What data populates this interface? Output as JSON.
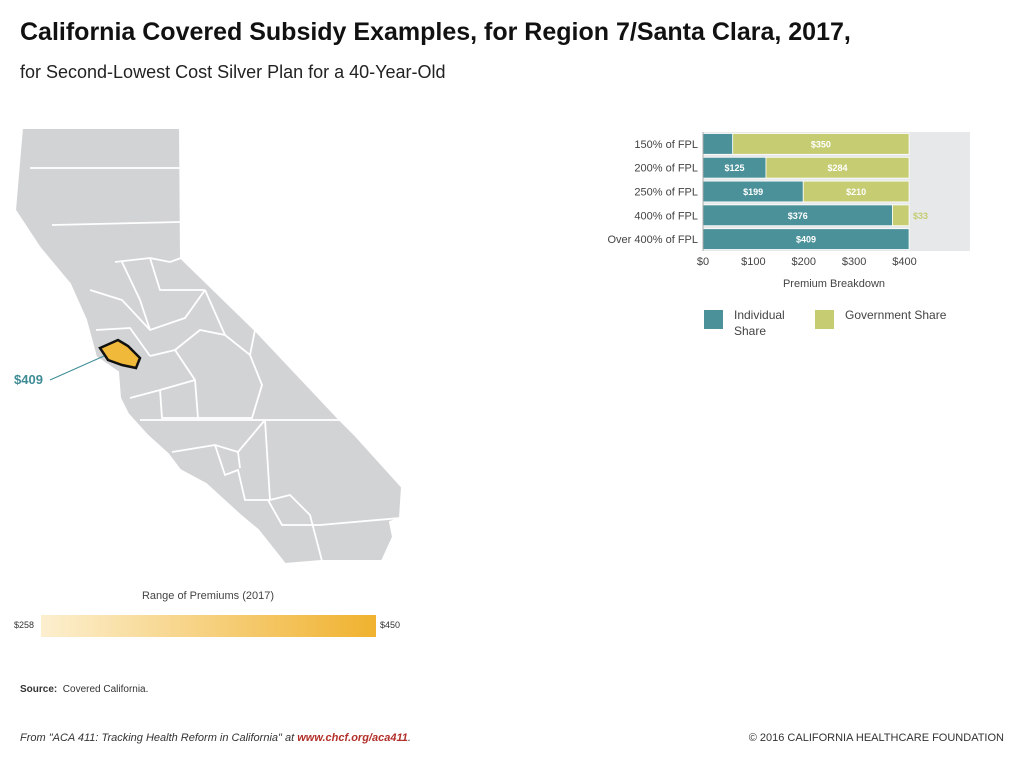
{
  "header": {
    "title": "California Covered Subsidy Examples, for Region 7/Santa Clara, 2017,",
    "subtitle": "for Second-Lowest Cost Silver Plan for a 40-Year-Old"
  },
  "map": {
    "highlight_label": "$409",
    "highlight_color": "#f1b93a",
    "land_color": "#d2d3d5",
    "callout_color": "#3f8c96"
  },
  "range": {
    "title": "Range of Premiums (2017)",
    "min_label": "$258",
    "max_label": "$450",
    "min_color": "#fcefcf",
    "max_color": "#f0b22f"
  },
  "chart_data": {
    "type": "bar",
    "orientation": "horizontal",
    "stacked": true,
    "categories": [
      "150% of FPL",
      "200% of FPL",
      "250% of FPL",
      "400% of FPL",
      "Over 400% of FPL"
    ],
    "series": [
      {
        "name": "Individual Share",
        "color": "#4b9199",
        "values": [
          59,
          125,
          199,
          376,
          409
        ],
        "labels": [
          "$59",
          "$125",
          "$199",
          "$376",
          "$409"
        ]
      },
      {
        "name": "Government Share",
        "color": "#c5cc72",
        "values": [
          350,
          284,
          210,
          33,
          0
        ],
        "labels": [
          "$350",
          "$284",
          "$210",
          "$33",
          ""
        ]
      }
    ],
    "xlabel": "Premium Breakdown",
    "xticks": [
      "$0",
      "$100",
      "$200",
      "$300",
      "$400"
    ],
    "xlim": [
      0,
      530
    ],
    "legend_position": "bottom",
    "grid": false
  },
  "source": {
    "label": "Source:",
    "text": "Covered California."
  },
  "footer": {
    "left_prefix": "From \"ACA 411: Tracking Health Reform in California\" at ",
    "left_link": "www.chcf.org/aca411",
    "left_suffix": ".",
    "right": "© 2016 CALIFORNIA HEALTHCARE FOUNDATION"
  }
}
